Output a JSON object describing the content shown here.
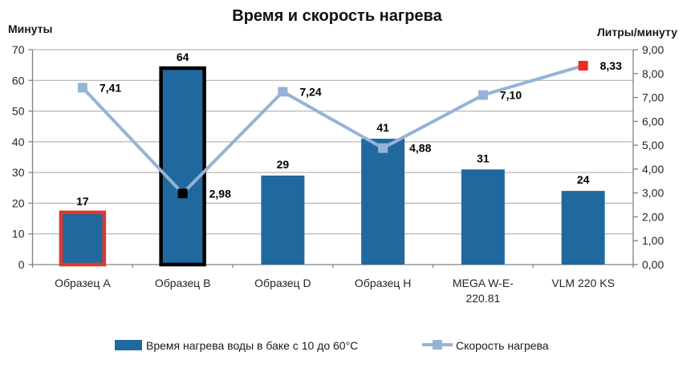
{
  "title": "Время и скорость нагрева",
  "left_axis_title": "Минуты",
  "right_axis_title": "Литры/минуту",
  "chart_data": {
    "type": "combo-bar-line",
    "title": "Время и скорость нагрева",
    "categories": [
      "Образец A",
      "Образец B",
      "Образец D",
      "Образец H",
      "MEGA W-E-\n220.81",
      "VLM 220 KS"
    ],
    "series": [
      {
        "name": "Время нагрева воды в баке с 10 до 60°С",
        "type": "bar",
        "axis": "left",
        "values": [
          17,
          64,
          29,
          41,
          31,
          24
        ],
        "labels": [
          "17",
          "64",
          "29",
          "41",
          "31",
          "24"
        ],
        "color": "#20699E",
        "outline_colors": [
          "#E0372D",
          "#000000",
          null,
          null,
          null,
          null
        ]
      },
      {
        "name": "Скорость нагрева",
        "type": "line",
        "axis": "right",
        "values": [
          7.41,
          2.98,
          7.24,
          4.88,
          7.1,
          8.33
        ],
        "labels": [
          "7,41",
          "2,98",
          "7,24",
          "4,88",
          "7,10",
          "8,33"
        ],
        "color": "#95B3D7",
        "marker_colors": [
          null,
          "#000000",
          null,
          null,
          null,
          "#EE2B1F"
        ]
      }
    ],
    "left_axis": {
      "title": "Минуты",
      "min": 0,
      "max": 70,
      "step": 10,
      "tick_labels": [
        "0",
        "10",
        "20",
        "30",
        "40",
        "50",
        "60",
        "70"
      ]
    },
    "right_axis": {
      "title": "Литры/минуту",
      "min": 0,
      "max": 9,
      "step": 1,
      "tick_labels": [
        "0,00",
        "1,00",
        "2,00",
        "3,00",
        "4,00",
        "5,00",
        "6,00",
        "7,00",
        "8,00",
        "9,00"
      ]
    },
    "grid": true,
    "legend_position": "bottom",
    "grid_color": "#A6A6A6",
    "axis_color": "#808080"
  }
}
